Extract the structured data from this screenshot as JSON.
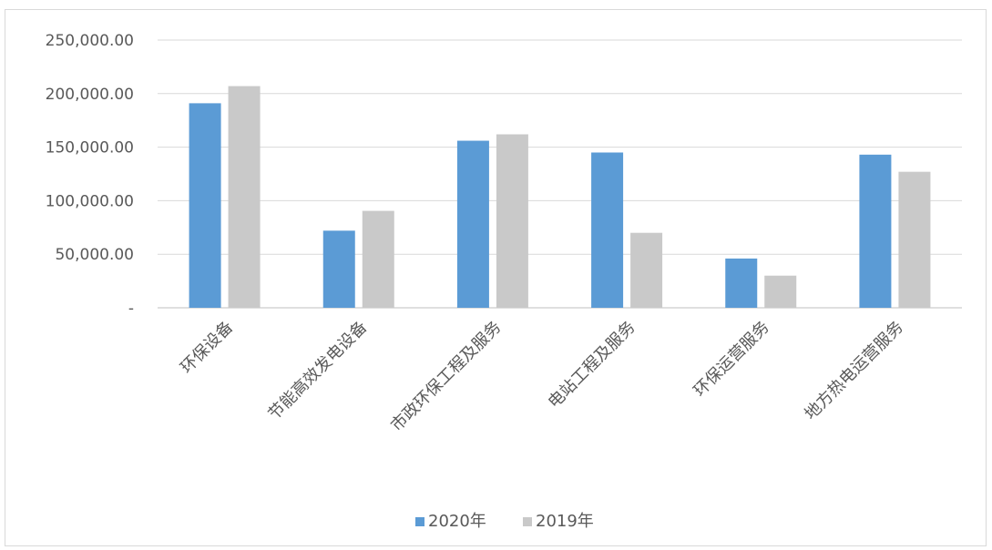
{
  "chart_data": {
    "type": "bar",
    "categories": [
      "环保设备",
      "节能高效发电设备",
      "市政环保工程及服务",
      "电站工程及服务",
      "环保运营服务",
      "地方热电运营服务"
    ],
    "series": [
      {
        "name": "2020年",
        "color": "#5b9bd5",
        "values": [
          191000,
          72000,
          156000,
          145000,
          46000,
          143000
        ]
      },
      {
        "name": "2019年",
        "color": "#c9c9c9",
        "values": [
          207000,
          90500,
          162000,
          70000,
          30000,
          127000
        ]
      }
    ],
    "yticks": [
      "-",
      "50,000.00",
      "100,000.00",
      "150,000.00",
      "200,000.00",
      "250,000.00"
    ],
    "ylim": [
      0,
      250000
    ],
    "grid": true,
    "legend_position": "bottom"
  }
}
